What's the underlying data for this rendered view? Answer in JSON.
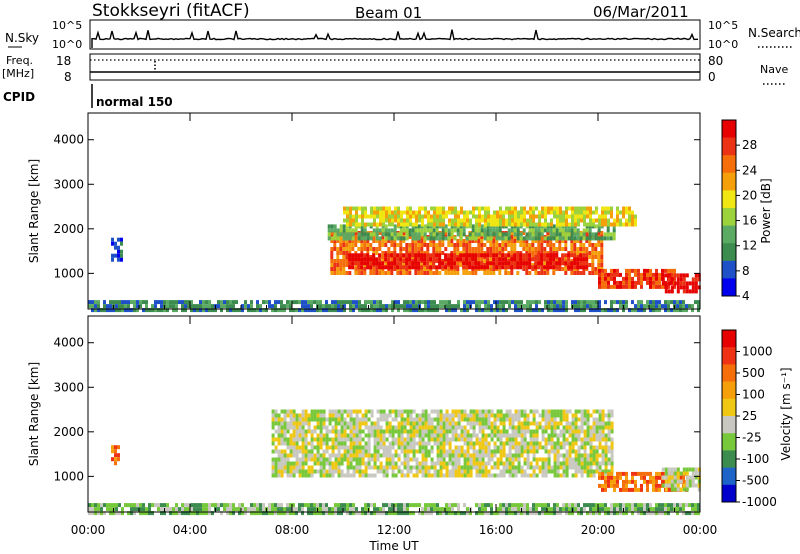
{
  "header": {
    "station": "Stokkseyri (fitACF)",
    "beam": "Beam 01",
    "date": "06/Mar/2011"
  },
  "nsky_panel": {
    "left_label": "N.Sky",
    "ticks_left": [
      "10^5",
      "10^0"
    ],
    "ticks_right": [
      "10^5",
      "10^0"
    ],
    "right_label": "N.Search"
  },
  "freq_panel": {
    "left_label_1": "Freq.",
    "left_label_2": "[MHz]",
    "ticks_left": [
      "18",
      "8"
    ],
    "ticks_right": [
      "80",
      "0"
    ],
    "right_label": "Nave"
  },
  "cpid_panel": {
    "label": "CPID",
    "mode": "normal 150"
  },
  "power_colorbar": {
    "label": "Power [dB]",
    "ticks": [
      "28",
      "24",
      "20",
      "16",
      "12",
      "8",
      "4"
    ]
  },
  "velocity_colorbar": {
    "label": "Velocity [m s⁻¹]",
    "ticks": [
      "1000",
      "500",
      "100",
      "25",
      "-25",
      "-100",
      "-500",
      "-1000"
    ]
  },
  "colors": {
    "power": [
      "#0000ee",
      "#1e50c8",
      "#3c8c50",
      "#5aaa64",
      "#9cd23c",
      "#f0e614",
      "#f5a00a",
      "#f56e0a",
      "#eb3214",
      "#e60000"
    ],
    "velocity": [
      "#0000cd",
      "#1e64c8",
      "#3c8c50",
      "#78c83c",
      "#c8c8c0",
      "#f0c814",
      "#f5a00a",
      "#f56e0a",
      "#f03214",
      "#e60000"
    ]
  },
  "chart_data": [
    {
      "type": "heatmap",
      "name": "power",
      "ylabel": "Slant Range [km]",
      "yticks": [
        "1000",
        "2000",
        "3000",
        "4000"
      ],
      "ylim": [
        200,
        4600
      ],
      "xlim": [
        0,
        24
      ],
      "regions": [
        {
          "x": [
            9.5,
            20.2
          ],
          "y": [
            1050,
            1950
          ],
          "level": 7
        },
        {
          "x": [
            10.2,
            19.5
          ],
          "y": [
            1150,
            1450
          ],
          "level": 9
        },
        {
          "x": [
            9.4,
            20.6
          ],
          "y": [
            1800,
            2100
          ],
          "level": 3
        },
        {
          "x": [
            10.0,
            21.5
          ],
          "y": [
            2100,
            2500
          ],
          "level": 5
        },
        {
          "x": [
            20.0,
            23.0
          ],
          "y": [
            700,
            1100
          ],
          "level": 8
        },
        {
          "x": [
            22.5,
            24.0
          ],
          "y": [
            600,
            1000
          ],
          "level": 9
        },
        {
          "x": [
            0.0,
            24.0
          ],
          "y": [
            200,
            400
          ],
          "level": 2
        },
        {
          "x": [
            0.9,
            1.3
          ],
          "y": [
            1300,
            1800
          ],
          "level": 1
        }
      ]
    },
    {
      "type": "heatmap",
      "name": "velocity",
      "ylabel": "Slant Range [km]",
      "yticks": [
        "1000",
        "2000",
        "3000",
        "4000"
      ],
      "ylim": [
        200,
        4600
      ],
      "xlim": [
        0,
        24
      ],
      "xticks": [
        "00:00",
        "04:00",
        "08:00",
        "12:00",
        "16:00",
        "20:00",
        "00:00"
      ],
      "xlabel": "Time UT",
      "regions": [
        {
          "x": [
            7.2,
            20.5
          ],
          "y": [
            1050,
            2500
          ],
          "level": 4
        },
        {
          "x": [
            20.0,
            23.5
          ],
          "y": [
            700,
            1100
          ],
          "level": 7
        },
        {
          "x": [
            22.5,
            24.0
          ],
          "y": [
            700,
            1200
          ],
          "level": 4
        },
        {
          "x": [
            0.9,
            1.2
          ],
          "y": [
            1300,
            1700
          ],
          "level": 7
        },
        {
          "x": [
            0.0,
            24.0
          ],
          "y": [
            200,
            400
          ],
          "level": 3
        }
      ]
    }
  ]
}
